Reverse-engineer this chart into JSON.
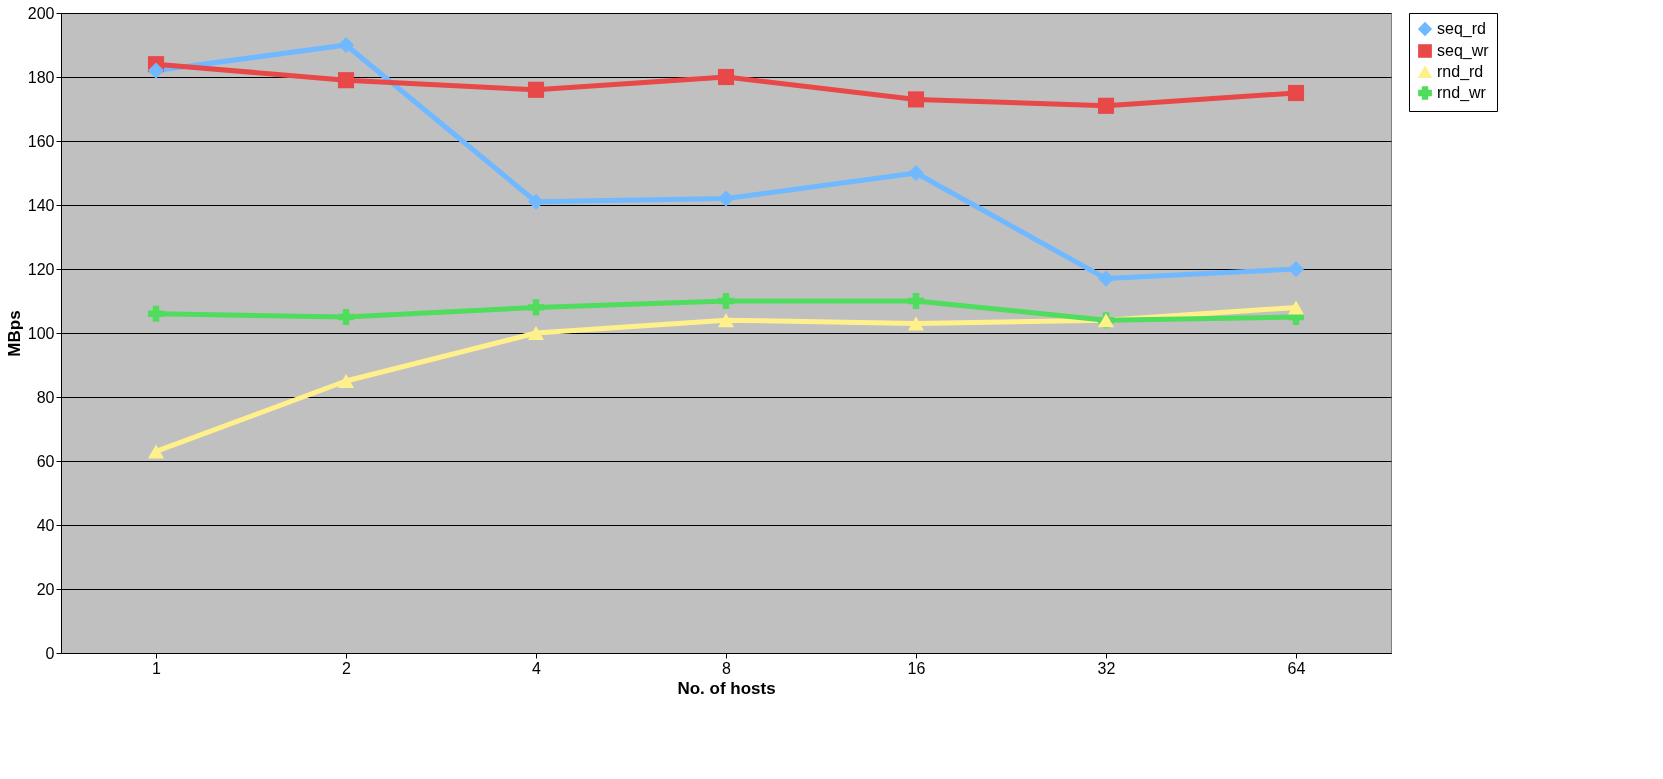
{
  "chart_data": {
    "type": "line",
    "xlabel": "No. of hosts",
    "ylabel": "MBps",
    "categories": [
      "1",
      "2",
      "4",
      "8",
      "16",
      "32",
      "64"
    ],
    "series": [
      {
        "name": "seq_rd",
        "color": "#70b8ff",
        "marker": "diamond",
        "values": [
          182,
          190,
          141,
          142,
          150,
          117,
          120
        ]
      },
      {
        "name": "seq_wr",
        "color": "#e84848",
        "marker": "square",
        "values": [
          184,
          179,
          176,
          180,
          173,
          171,
          175
        ]
      },
      {
        "name": "rnd_rd",
        "color": "#fff08c",
        "marker": "triangle",
        "values": [
          63,
          85,
          100,
          104,
          103,
          104,
          108
        ]
      },
      {
        "name": "rnd_wr",
        "color": "#50dc5c",
        "marker": "cross",
        "values": [
          106,
          105,
          108,
          110,
          110,
          104,
          105
        ]
      }
    ],
    "ylim": [
      0,
      200
    ],
    "yticks": [
      0,
      20,
      40,
      60,
      80,
      100,
      120,
      140,
      160,
      180,
      200
    ],
    "grid": "y",
    "legend": "right",
    "line_style": "solid"
  }
}
